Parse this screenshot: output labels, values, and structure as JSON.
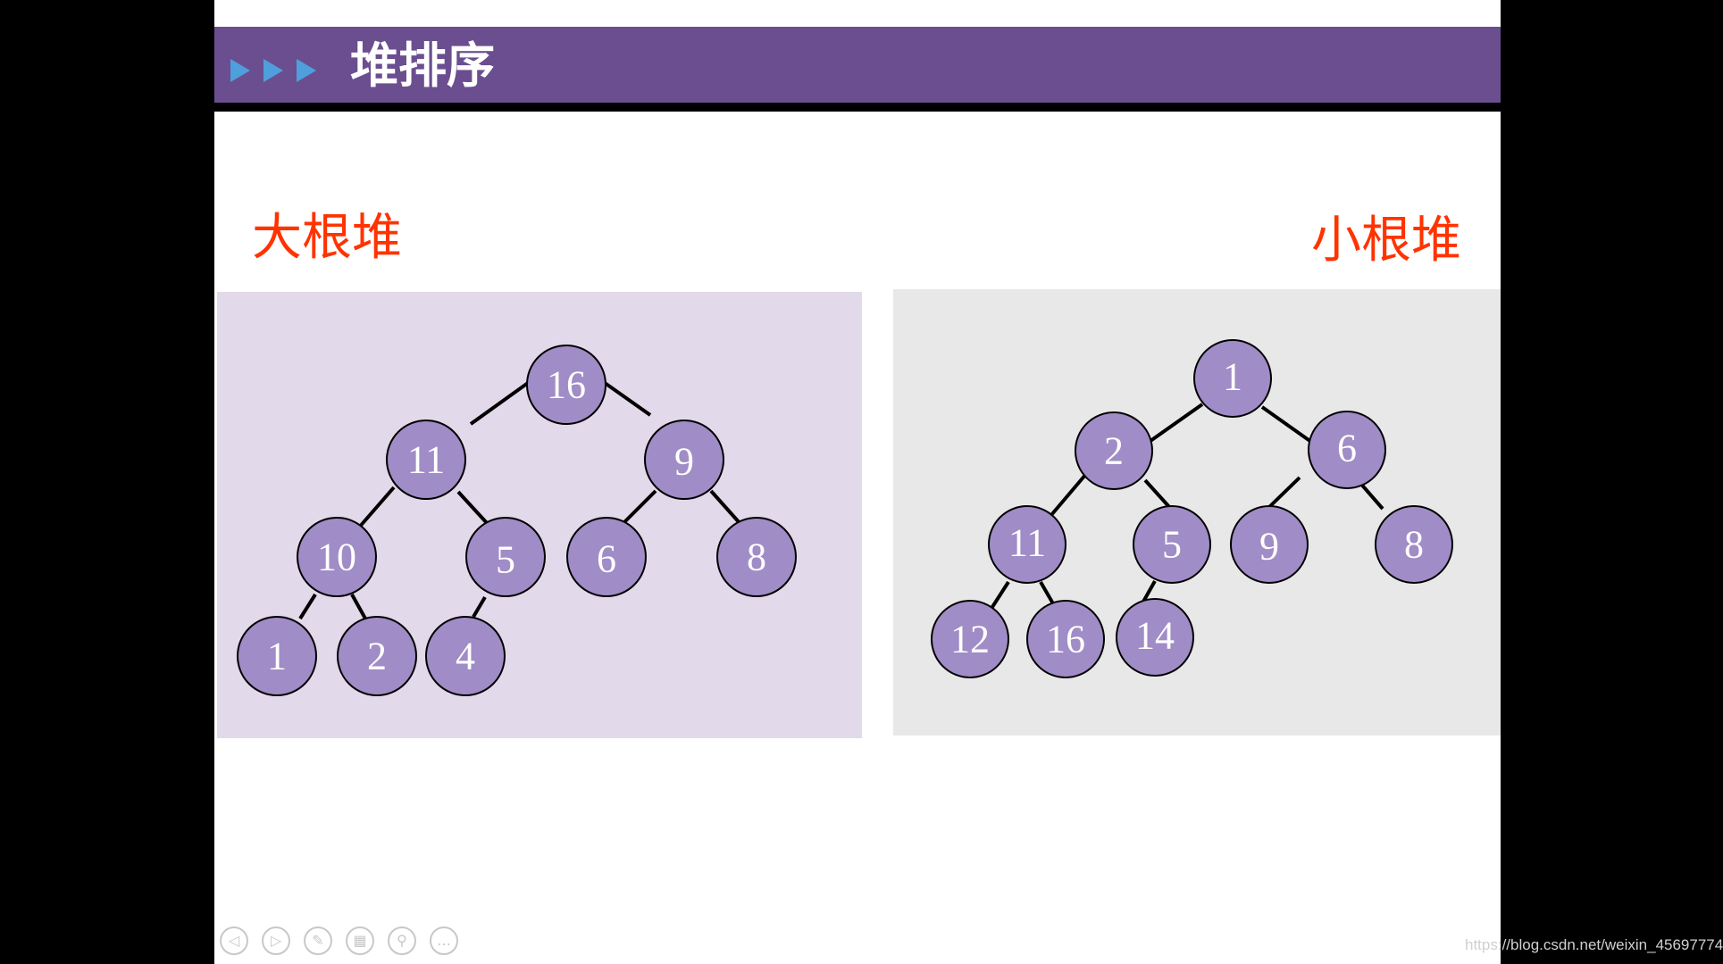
{
  "slide": {
    "title": "堆排序",
    "header_color": "#6b4e90",
    "triangle_color": "#4f9fdc"
  },
  "max_heap": {
    "label": "大根堆",
    "panel_color": "#e2d9ea",
    "nodes": [
      "16",
      "11",
      "9",
      "10",
      "5",
      "6",
      "8",
      "1",
      "2",
      "4"
    ]
  },
  "min_heap": {
    "label": "小根堆",
    "panel_color": "#e8e8e8",
    "nodes": [
      "1",
      "2",
      "6",
      "11",
      "5",
      "9",
      "8",
      "12",
      "16",
      "14"
    ]
  },
  "node_color": "#a08cc6",
  "label_color": "#ff3300",
  "controls": [
    "previous-icon",
    "next-icon",
    "pen-icon",
    "slides-icon",
    "zoom-icon",
    "more-icon"
  ],
  "watermark": "https://blog.csdn.net/weixin_45697774"
}
